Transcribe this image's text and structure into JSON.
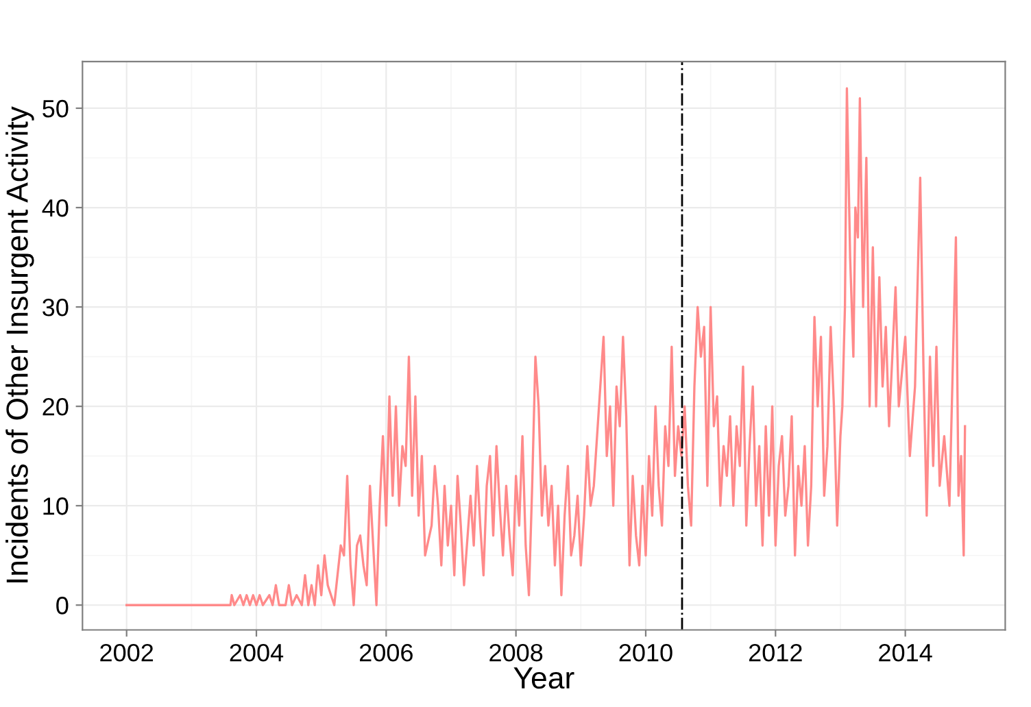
{
  "chart_data": {
    "type": "line",
    "xlabel": "Year",
    "ylabel": "Incidents of Other Insurgent Activity",
    "series": [
      {
        "color": "#ff8a8a",
        "x": [
          2002,
          2003.6,
          2003.62,
          2003.66,
          2003.75,
          2003.8,
          2003.85,
          2003.9,
          2003.95,
          2004.0,
          2004.05,
          2004.1,
          2004.2,
          2004.25,
          2004.3,
          2004.35,
          2004.45,
          2004.5,
          2004.55,
          2004.62,
          2004.7,
          2004.75,
          2004.8,
          2004.85,
          2004.9,
          2004.95,
          2005.0,
          2005.05,
          2005.1,
          2005.15,
          2005.2,
          2005.3,
          2005.35,
          2005.4,
          2005.45,
          2005.5,
          2005.55,
          2005.6,
          2005.65,
          2005.7,
          2005.75,
          2005.8,
          2005.85,
          2005.9,
          2005.95,
          2006.0,
          2006.05,
          2006.1,
          2006.15,
          2006.2,
          2006.25,
          2006.3,
          2006.35,
          2006.4,
          2006.45,
          2006.5,
          2006.55,
          2006.6,
          2006.7,
          2006.75,
          2006.8,
          2006.85,
          2006.9,
          2006.95,
          2007.0,
          2007.05,
          2007.1,
          2007.15,
          2007.2,
          2007.3,
          2007.35,
          2007.4,
          2007.45,
          2007.5,
          2007.55,
          2007.6,
          2007.65,
          2007.7,
          2007.75,
          2007.8,
          2007.85,
          2007.9,
          2007.95,
          2008.0,
          2008.05,
          2008.1,
          2008.15,
          2008.2,
          2008.25,
          2008.3,
          2008.35,
          2008.4,
          2008.45,
          2008.5,
          2008.55,
          2008.6,
          2008.65,
          2008.7,
          2008.75,
          2008.8,
          2008.85,
          2008.9,
          2008.95,
          2009.0,
          2009.05,
          2009.1,
          2009.15,
          2009.2,
          2009.25,
          2009.3,
          2009.35,
          2009.4,
          2009.45,
          2009.5,
          2009.55,
          2009.6,
          2009.65,
          2009.7,
          2009.75,
          2009.8,
          2009.85,
          2009.9,
          2009.95,
          2010.0,
          2010.05,
          2010.1,
          2010.15,
          2010.2,
          2010.25,
          2010.3,
          2010.35,
          2010.4,
          2010.45,
          2010.5,
          2010.55,
          2010.6,
          2010.65,
          2010.7,
          2010.75,
          2010.8,
          2010.85,
          2010.9,
          2010.95,
          2011.0,
          2011.05,
          2011.1,
          2011.15,
          2011.2,
          2011.25,
          2011.3,
          2011.35,
          2011.4,
          2011.45,
          2011.5,
          2011.55,
          2011.6,
          2011.65,
          2011.7,
          2011.75,
          2011.8,
          2011.85,
          2011.9,
          2011.95,
          2012.0,
          2012.05,
          2012.1,
          2012.15,
          2012.2,
          2012.25,
          2012.3,
          2012.35,
          2012.4,
          2012.45,
          2012.5,
          2012.55,
          2012.6,
          2012.65,
          2012.7,
          2012.75,
          2012.8,
          2012.85,
          2012.9,
          2012.95,
          2013.0,
          2013.03,
          2013.07,
          2013.1,
          2013.15,
          2013.2,
          2013.23,
          2013.27,
          2013.3,
          2013.35,
          2013.4,
          2013.45,
          2013.5,
          2013.55,
          2013.6,
          2013.65,
          2013.7,
          2013.75,
          2013.8,
          2013.85,
          2013.9,
          2014.0,
          2014.07,
          2014.15,
          2014.23,
          2014.28,
          2014.33,
          2014.38,
          2014.43,
          2014.48,
          2014.53,
          2014.6,
          2014.68,
          2014.78,
          2014.82,
          2014.86,
          2014.9,
          2014.92
        ],
        "values": [
          0,
          0,
          1,
          0,
          1,
          0,
          1,
          0,
          1,
          0,
          1,
          0,
          1,
          0,
          2,
          0,
          0,
          2,
          0,
          1,
          0,
          3,
          0,
          2,
          0,
          4,
          1,
          5,
          2,
          1,
          0,
          6,
          5,
          13,
          4,
          0,
          6,
          7,
          4,
          2,
          12,
          6,
          0,
          10,
          17,
          8,
          21,
          11,
          20,
          10,
          16,
          14,
          25,
          11,
          21,
          9,
          15,
          5,
          8,
          14,
          10,
          4,
          12,
          6,
          10,
          3,
          13,
          8,
          2,
          11,
          6,
          14,
          8,
          3,
          12,
          15,
          7,
          16,
          10,
          5,
          12,
          7,
          3,
          13,
          8,
          17,
          6,
          1,
          12,
          25,
          20,
          9,
          14,
          8,
          12,
          4,
          10,
          1,
          9,
          14,
          5,
          7,
          11,
          4,
          9,
          16,
          10,
          12,
          17,
          22,
          27,
          15,
          20,
          10,
          22,
          18,
          27,
          19,
          4,
          13,
          7,
          4,
          12,
          5,
          15,
          9,
          20,
          12,
          8,
          18,
          14,
          26,
          13,
          18,
          15,
          20,
          12,
          8,
          22,
          30,
          25,
          28,
          12,
          30,
          18,
          21,
          10,
          16,
          13,
          19,
          10,
          18,
          14,
          24,
          8,
          16,
          22,
          10,
          16,
          6,
          18,
          9,
          20,
          6,
          14,
          17,
          9,
          12,
          19,
          5,
          14,
          10,
          16,
          6,
          12,
          29,
          20,
          27,
          11,
          16,
          28,
          20,
          8,
          17,
          20,
          30,
          52,
          35,
          25,
          40,
          37,
          51,
          30,
          45,
          20,
          36,
          20,
          33,
          22,
          28,
          18,
          25,
          32,
          20,
          27,
          15,
          22,
          43,
          24,
          9,
          25,
          14,
          26,
          12,
          17,
          10,
          37,
          11,
          15,
          5,
          18
        ]
      }
    ],
    "xlim": [
      2001.32,
      2015.54
    ],
    "ylim": [
      -2.5,
      54.7
    ],
    "xticks": [
      2002,
      2004,
      2006,
      2008,
      2010,
      2012,
      2014
    ],
    "yticks": [
      0,
      10,
      20,
      30,
      40,
      50
    ],
    "ref_lines": [
      {
        "axis": "x",
        "value": 2010.56,
        "color": "#000000",
        "line_style": "dashdot"
      }
    ],
    "grid": true,
    "legend": false
  }
}
